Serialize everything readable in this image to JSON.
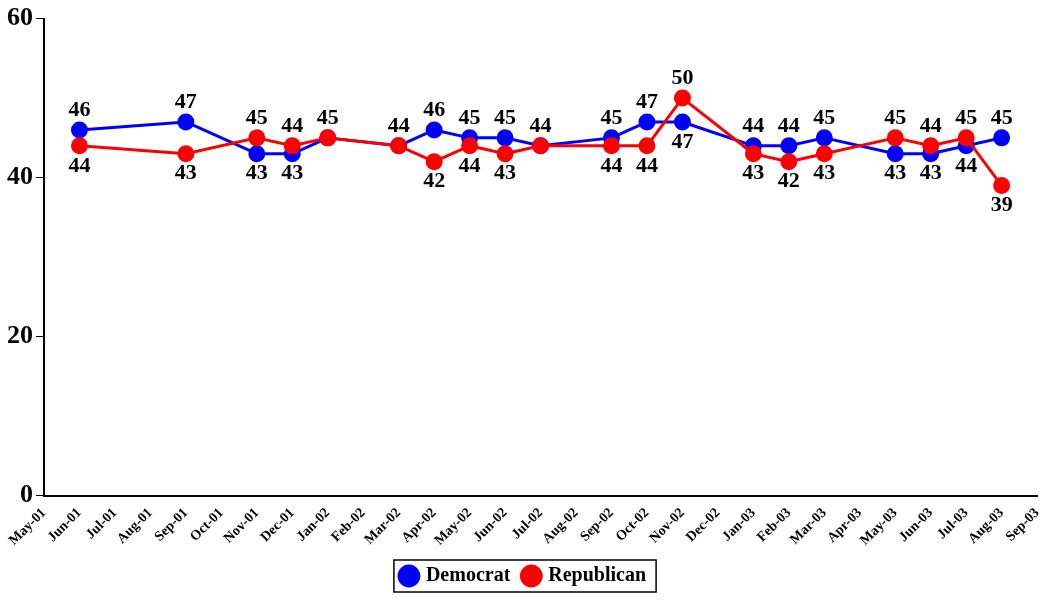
{
  "chart_data": {
    "type": "line",
    "categories": [
      "May-01",
      "Jun-01",
      "Jul-01",
      "Aug-01",
      "Sep-01",
      "Oct-01",
      "Nov-01",
      "Dec-01",
      "Jan-02",
      "Feb-02",
      "Mar-02",
      "Apr-02",
      "May-02",
      "Jun-02",
      "Jul-02",
      "Aug-02",
      "Sep-02",
      "Oct-02",
      "Nov-02",
      "Dec-02",
      "Jan-03",
      "Feb-03",
      "Mar-03",
      "Apr-03",
      "May-03",
      "Jun-03",
      "Jul-03",
      "Aug-03",
      "Sep-03"
    ],
    "series": [
      {
        "name": "Democrat",
        "color": "#0000ff",
        "values": [
          null,
          46,
          null,
          null,
          47,
          null,
          43,
          43,
          45,
          null,
          44,
          46,
          45,
          45,
          44,
          null,
          45,
          47,
          47,
          null,
          44,
          44,
          45,
          null,
          43,
          43,
          44,
          45,
          null
        ],
        "value_labels": [
          null,
          "46",
          null,
          null,
          "47",
          null,
          "43",
          "43",
          "45",
          null,
          "44",
          "46",
          "45",
          "45",
          "44",
          null,
          "45",
          "47",
          "47",
          null,
          "44",
          "44",
          "45",
          null,
          "43",
          "43",
          "44",
          "45",
          null
        ]
      },
      {
        "name": "Republican",
        "color": "#ff0000",
        "values": [
          null,
          44,
          null,
          null,
          43,
          null,
          45,
          44,
          45,
          null,
          44,
          42,
          44,
          43,
          44,
          null,
          44,
          44,
          50,
          null,
          43,
          42,
          43,
          null,
          45,
          44,
          45,
          39,
          null
        ],
        "value_labels": [
          null,
          "44",
          null,
          null,
          "43",
          null,
          "45",
          "44",
          null,
          null,
          null,
          "42",
          "44",
          "43",
          null,
          null,
          "44",
          "44",
          "50",
          null,
          "43",
          "42",
          "43",
          null,
          "45",
          "44",
          "45",
          "39",
          null
        ]
      }
    ],
    "ylim": [
      0,
      60
    ],
    "yticks": [
      0,
      20,
      40,
      60
    ],
    "grid": false,
    "legend": "bottom",
    "marker": "circle",
    "line_style": "solid"
  }
}
